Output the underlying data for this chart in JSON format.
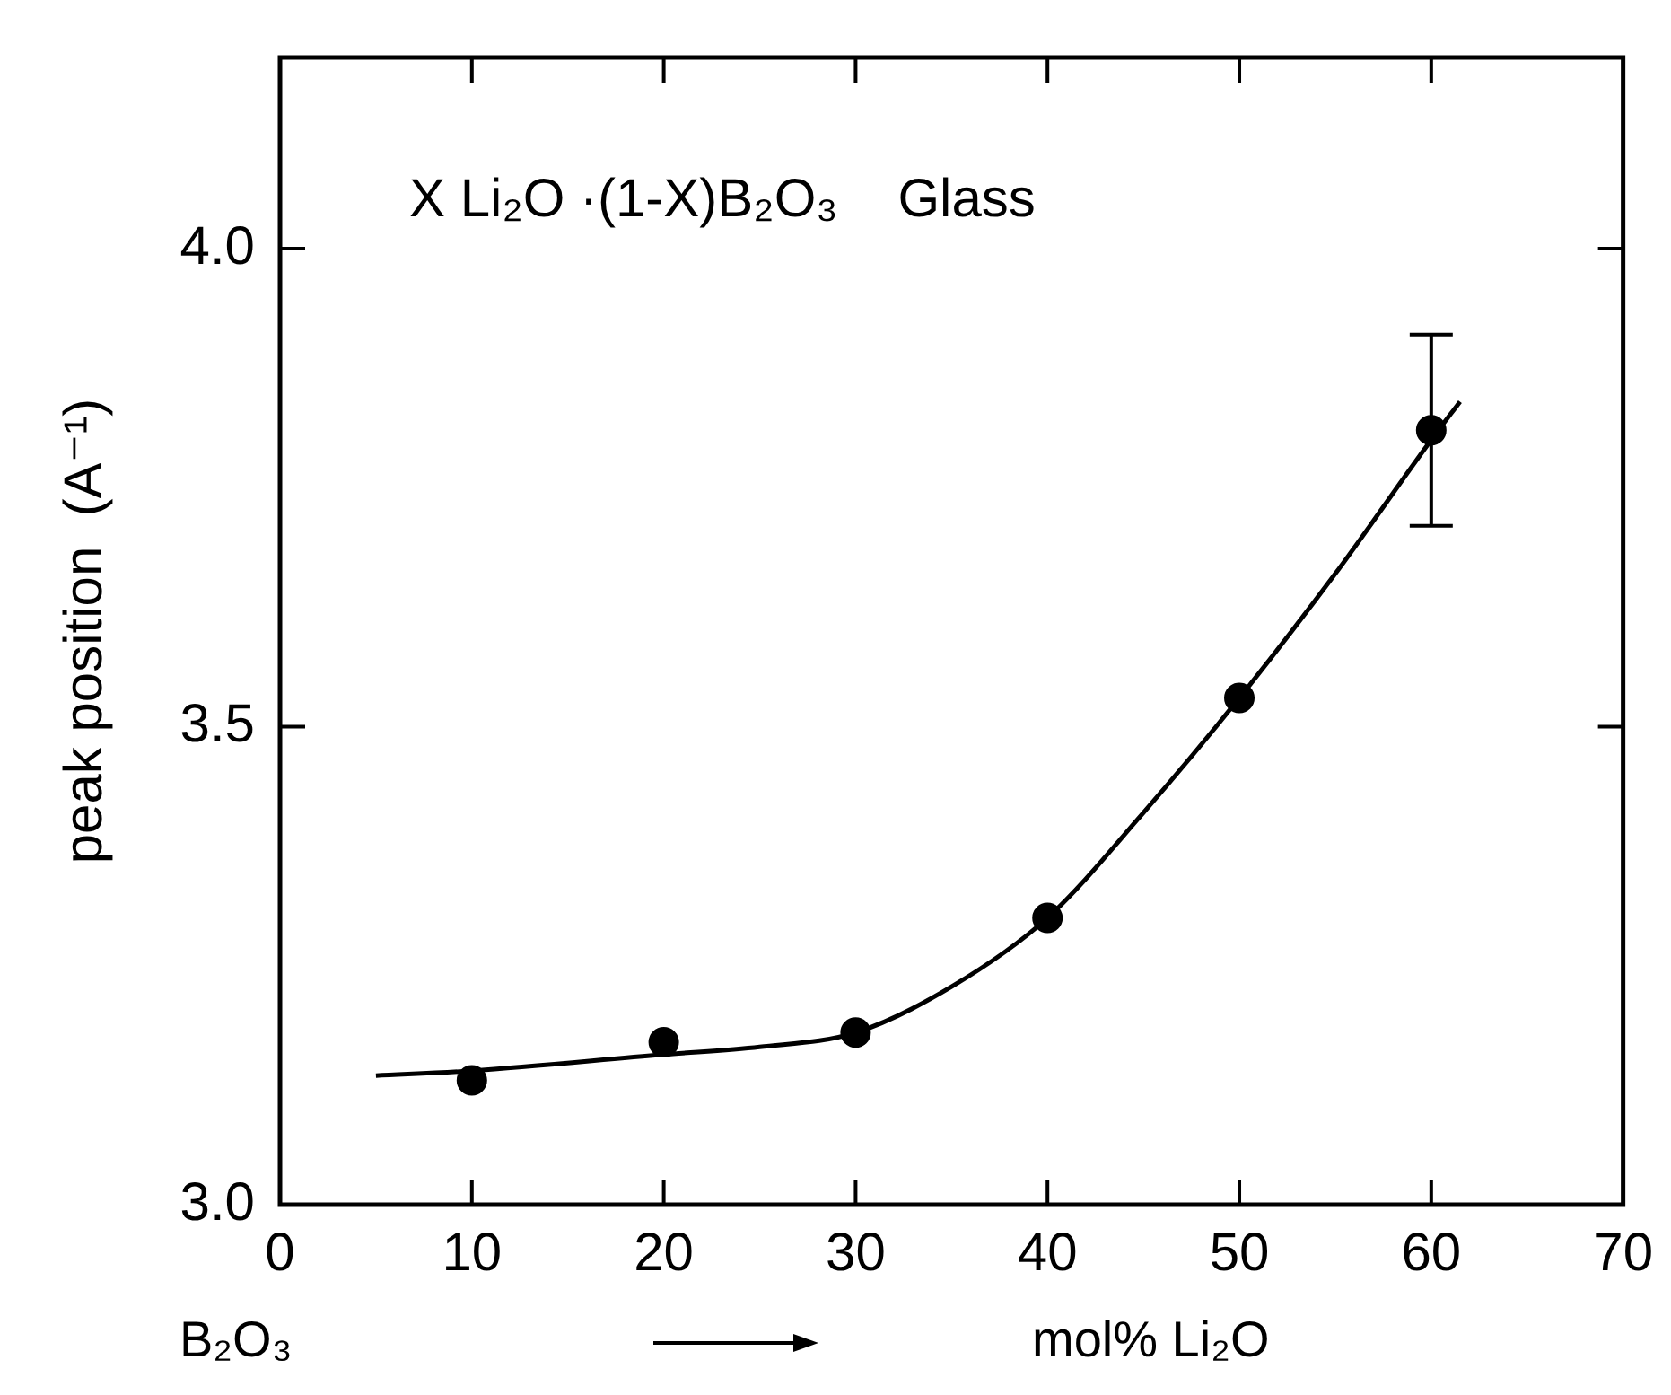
{
  "chart_data": {
    "type": "scatter",
    "xlabel": "mol% Li₂O",
    "ylabel": "peak position  (A⁻¹)",
    "annotations": [
      "X Li₂O ·(1-X)B₂O₃    Glass",
      "B₂O₃"
    ],
    "xlim": [
      0,
      70
    ],
    "xticks": [
      0,
      10,
      20,
      30,
      40,
      50,
      60,
      70
    ],
    "ylim": [
      3.0,
      4.2
    ],
    "yticks": [
      {
        "value": 3.0,
        "label": "3.0"
      },
      {
        "value": 3.5,
        "label": "3.5"
      },
      {
        "value": 4.0,
        "label": "4.0"
      }
    ],
    "marker": "circle",
    "legend": false,
    "series": [
      {
        "color": "#000000",
        "x": [
          10,
          20,
          30,
          40,
          50,
          60
        ],
        "values": [
          3.13,
          3.17,
          3.18,
          3.3,
          3.53,
          3.81
        ],
        "errors": [
          null,
          null,
          null,
          null,
          null,
          0.1
        ]
      },
      {
        "type": "line",
        "color": "#000000",
        "marker": "none",
        "x": [
          5,
          10,
          20,
          25,
          30,
          35,
          40,
          45,
          50,
          55,
          60,
          61.5
        ],
        "values": [
          3.135,
          3.14,
          3.157,
          3.165,
          3.18,
          3.228,
          3.3,
          3.41,
          3.53,
          3.66,
          3.8,
          3.84
        ]
      }
    ]
  }
}
